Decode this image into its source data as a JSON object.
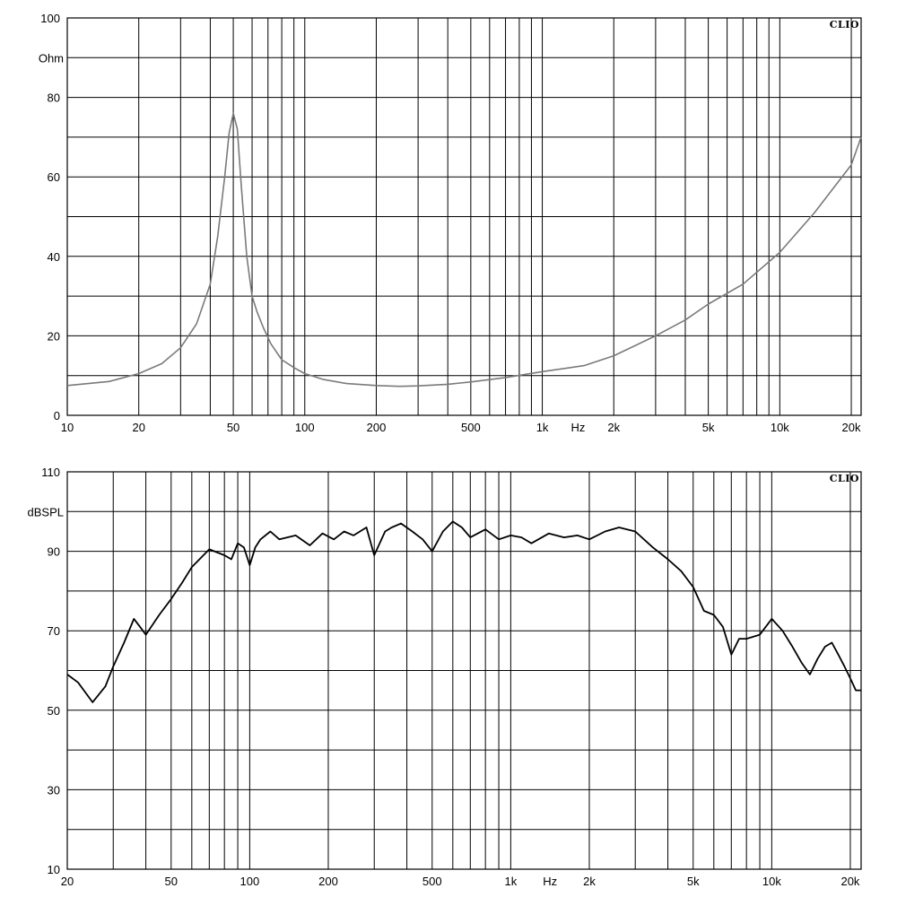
{
  "brand": "CLIO",
  "chart_data": [
    {
      "type": "line",
      "x_scale": "log",
      "xlim": [
        10,
        22000
      ],
      "ylim": [
        0,
        100
      ],
      "ylabel": "Ohm",
      "xunit": "Hz",
      "yticks": [
        0,
        20,
        40,
        60,
        80,
        100
      ],
      "xtick_labels": [
        "10",
        "20",
        "50",
        "100",
        "200",
        "500",
        "1k",
        "2k",
        "5k",
        "10k",
        "20k"
      ],
      "xtick_values": [
        10,
        20,
        50,
        100,
        200,
        500,
        1000,
        2000,
        5000,
        10000,
        20000
      ],
      "grid": true,
      "line_color": "#7a7a7a",
      "series": [
        {
          "x": [
            10,
            15,
            20,
            25,
            30,
            35,
            40,
            43,
            46,
            48,
            50,
            52,
            54,
            57,
            60,
            63,
            67,
            72,
            80,
            90,
            100,
            120,
            150,
            200,
            250,
            300,
            400,
            500,
            700,
            1000,
            1500,
            2000,
            3000,
            4000,
            5000,
            7000,
            10000,
            14000,
            20000,
            22000
          ],
          "y": [
            7.5,
            8.5,
            10.5,
            13,
            17,
            23,
            33,
            45,
            60,
            71,
            76,
            72,
            58,
            40,
            30,
            26,
            22,
            18,
            14,
            12,
            10.5,
            9,
            8,
            7.5,
            7.3,
            7.4,
            7.8,
            8.4,
            9.5,
            11,
            12.5,
            15,
            20,
            24,
            28,
            33,
            41,
            51,
            63,
            70
          ]
        }
      ]
    },
    {
      "type": "line",
      "x_scale": "log",
      "xlim": [
        20,
        22000
      ],
      "ylim": [
        10,
        110
      ],
      "ylabel": "dBSPL",
      "xunit": "Hz",
      "yticks": [
        10,
        30,
        50,
        70,
        90,
        110
      ],
      "xtick_labels": [
        "20",
        "50",
        "100",
        "200",
        "500",
        "1k",
        "2k",
        "5k",
        "10k",
        "20k"
      ],
      "xtick_values": [
        20,
        50,
        100,
        200,
        500,
        1000,
        2000,
        5000,
        10000,
        20000
      ],
      "grid": true,
      "line_color": "#000000",
      "series": [
        {
          "x": [
            20,
            22,
            25,
            28,
            30,
            33,
            36,
            38,
            40,
            45,
            50,
            55,
            60,
            70,
            80,
            85,
            90,
            95,
            100,
            105,
            110,
            120,
            130,
            150,
            170,
            190,
            210,
            230,
            250,
            280,
            300,
            330,
            350,
            380,
            420,
            460,
            500,
            550,
            600,
            650,
            700,
            800,
            900,
            1000,
            1100,
            1200,
            1400,
            1600,
            1800,
            2000,
            2300,
            2600,
            3000,
            3500,
            4000,
            4500,
            5000,
            5500,
            6000,
            6500,
            7000,
            7500,
            8000,
            9000,
            10000,
            11000,
            12000,
            13000,
            14000,
            15000,
            16000,
            17000,
            18000,
            19000,
            20000,
            21000,
            22000
          ],
          "y": [
            59,
            57,
            52,
            56,
            61,
            67,
            73,
            71,
            69,
            74,
            78,
            82,
            86,
            90.5,
            89,
            88,
            92,
            91,
            86.5,
            91,
            93,
            95,
            93,
            94,
            91.5,
            94.5,
            93,
            95,
            94,
            96,
            89,
            95,
            96,
            97,
            95,
            93,
            90,
            95,
            97.5,
            96,
            93.5,
            95.5,
            93,
            94,
            93.5,
            92,
            94.5,
            93.5,
            94,
            93,
            95,
            96,
            95,
            91,
            88,
            85,
            81,
            75,
            74,
            71,
            64,
            68,
            68,
            69,
            73,
            70,
            66,
            62,
            59,
            63,
            66,
            67,
            64,
            61,
            58,
            55,
            55
          ]
        }
      ]
    }
  ]
}
